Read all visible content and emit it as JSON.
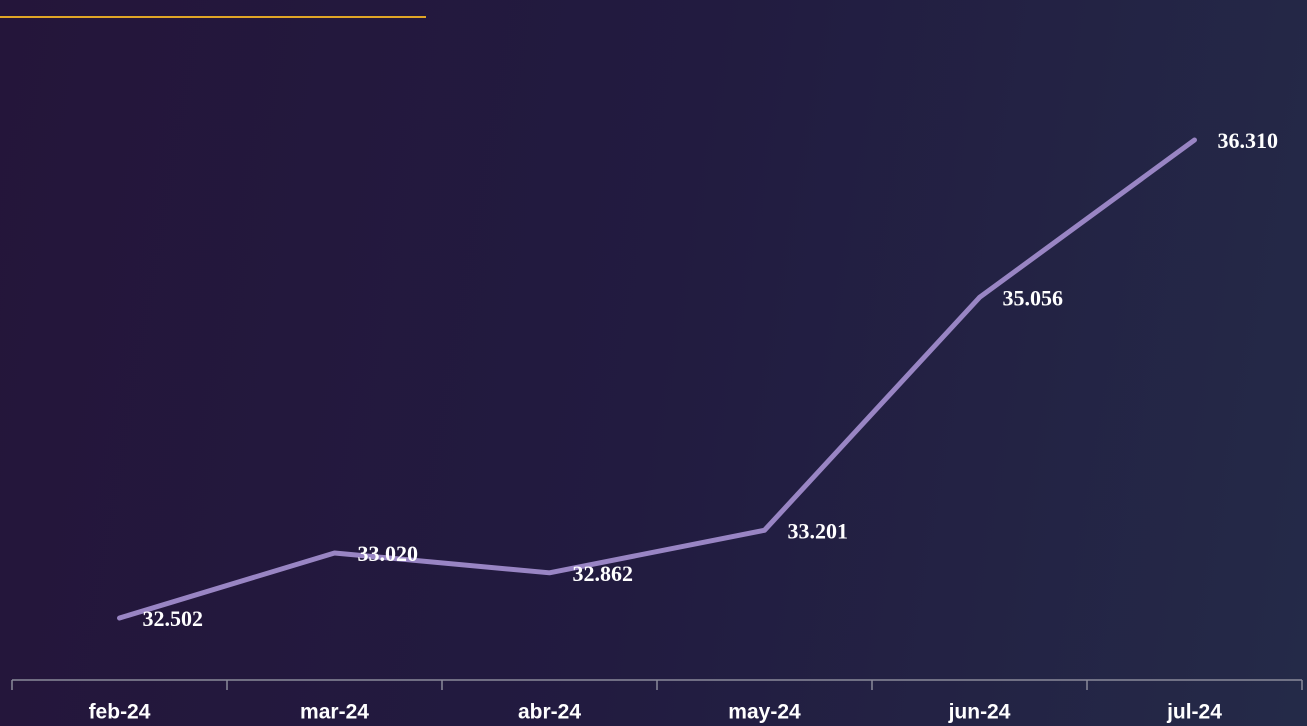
{
  "chart_data": {
    "type": "line",
    "categories": [
      "feb-24",
      "mar-24",
      "abr-24",
      "may-24",
      "jun-24",
      "jul-24"
    ],
    "values": [
      32502,
      33020,
      32862,
      33201,
      35056,
      36310
    ],
    "value_labels": [
      "32.502",
      "33.020",
      "32.862",
      "33.201",
      "35.056",
      "36.310"
    ],
    "color": "#9985c4"
  }
}
